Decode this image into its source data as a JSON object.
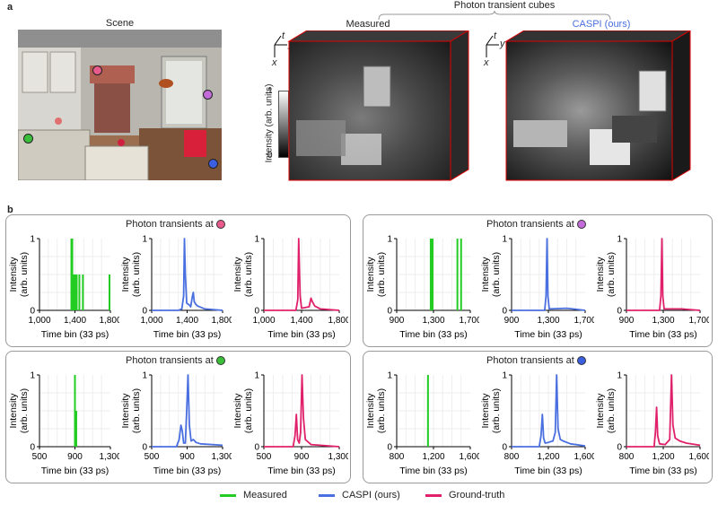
{
  "panel_a": {
    "letter": "a",
    "scene_title": "Scene",
    "cubes_header": "Photon transient cubes",
    "measured_title": "Measured",
    "caspi_title": "CASPI (ours)",
    "colorbar": {
      "label": "Intensity (arb. units)",
      "max": "1",
      "min": "0"
    },
    "axes_labels": {
      "t": "t",
      "y": "y",
      "x": "x"
    },
    "points": [
      {
        "name": "pink",
        "color": "#e85a8c"
      },
      {
        "name": "purple",
        "color": "#c36bd9"
      },
      {
        "name": "green",
        "color": "#3bbf3b"
      },
      {
        "name": "blue",
        "color": "#3b5fe0"
      }
    ]
  },
  "panel_b": {
    "letter": "b",
    "group_title_prefix": "Photon transients at",
    "ylabel_line1": "Intensity",
    "ylabel_line2": "(arb. units)",
    "xlabel": "Time bin (33 ps)"
  },
  "legend": {
    "measured": "Measured",
    "caspi": "CASPI (ours)",
    "ground_truth": "Ground-truth"
  },
  "colors": {
    "measured": "#22cc22",
    "caspi": "#4a6fe0",
    "ground_truth": "#e0206a",
    "caspi_title": "#4a6fe0"
  },
  "chart_data": [
    {
      "type": "line",
      "group": "pink",
      "series": [
        {
          "name": "Measured",
          "color": "#22cc22",
          "spikes": [
            [
              1360,
              1
            ],
            [
              1370,
              1
            ],
            [
              1375,
              0.5
            ],
            [
              1385,
              0.5
            ],
            [
              1400,
              0.5
            ],
            [
              1420,
              0.5
            ],
            [
              1450,
              0.5
            ],
            [
              1490,
              0.5
            ],
            [
              1790,
              0.5
            ]
          ]
        }
      ],
      "x_ticks": [
        "1,000",
        "1,400",
        "1,800"
      ],
      "xlim": [
        1000,
        1800
      ],
      "ylim": [
        0,
        1
      ],
      "y_ticks": [
        "0",
        "1"
      ]
    },
    {
      "type": "line",
      "group": "pink",
      "series": [
        {
          "name": "CASPI (ours)",
          "color": "#4a6fe0",
          "points": [
            [
              1000,
              0
            ],
            [
              1300,
              0
            ],
            [
              1340,
              0.02
            ],
            [
              1360,
              0.2
            ],
            [
              1370,
              1
            ],
            [
              1380,
              0.5
            ],
            [
              1395,
              0.1
            ],
            [
              1420,
              0.08
            ],
            [
              1440,
              0.05
            ],
            [
              1460,
              0.2
            ],
            [
              1470,
              0.25
            ],
            [
              1480,
              0.12
            ],
            [
              1500,
              0.08
            ],
            [
              1520,
              0.06
            ],
            [
              1560,
              0.04
            ],
            [
              1600,
              0.02
            ],
            [
              1800,
              0
            ]
          ]
        }
      ],
      "x_ticks": [
        "1,000",
        "1,400",
        "1,800"
      ],
      "xlim": [
        1000,
        1800
      ],
      "ylim": [
        0,
        1
      ],
      "y_ticks": [
        "0",
        "1"
      ]
    },
    {
      "type": "line",
      "group": "pink",
      "series": [
        {
          "name": "Ground-truth",
          "color": "#e0206a",
          "points": [
            [
              1000,
              0
            ],
            [
              1340,
              0
            ],
            [
              1360,
              0.15
            ],
            [
              1370,
              1
            ],
            [
              1385,
              0.2
            ],
            [
              1400,
              0.03
            ],
            [
              1480,
              0.05
            ],
            [
              1500,
              0.17
            ],
            [
              1515,
              0.12
            ],
            [
              1540,
              0.06
            ],
            [
              1600,
              0.02
            ],
            [
              1800,
              0
            ]
          ]
        }
      ],
      "x_ticks": [
        "1,000",
        "1,400",
        "1,800"
      ],
      "xlim": [
        1000,
        1800
      ],
      "ylim": [
        0,
        1
      ],
      "y_ticks": [
        "0",
        "1"
      ]
    },
    {
      "type": "line",
      "group": "purple",
      "series": [
        {
          "name": "Measured",
          "color": "#22cc22",
          "spikes": [
            [
              1270,
              1
            ],
            [
              1280,
              1
            ],
            [
              1290,
              1
            ],
            [
              1560,
              1
            ],
            [
              1600,
              1
            ]
          ]
        }
      ],
      "x_ticks": [
        "900",
        "1,300",
        "1,700"
      ],
      "xlim": [
        900,
        1700
      ],
      "ylim": [
        0,
        1
      ],
      "y_ticks": [
        "0",
        "1"
      ]
    },
    {
      "type": "line",
      "group": "purple",
      "series": [
        {
          "name": "CASPI (ours)",
          "color": "#4a6fe0",
          "points": [
            [
              900,
              0
            ],
            [
              1260,
              0
            ],
            [
              1275,
              0.2
            ],
            [
              1285,
              1
            ],
            [
              1295,
              0.2
            ],
            [
              1310,
              0.02
            ],
            [
              1500,
              0.03
            ],
            [
              1700,
              0
            ]
          ]
        }
      ],
      "x_ticks": [
        "900",
        "1,300",
        "1,700"
      ],
      "xlim": [
        900,
        1700
      ],
      "ylim": [
        0,
        1
      ],
      "y_ticks": [
        "0",
        "1"
      ]
    },
    {
      "type": "line",
      "group": "purple",
      "series": [
        {
          "name": "Ground-truth",
          "color": "#e0206a",
          "points": [
            [
              900,
              0
            ],
            [
              1260,
              0
            ],
            [
              1275,
              0.2
            ],
            [
              1285,
              1
            ],
            [
              1295,
              0.2
            ],
            [
              1310,
              0.02
            ],
            [
              1500,
              0.02
            ],
            [
              1700,
              0
            ]
          ]
        }
      ],
      "x_ticks": [
        "900",
        "1,300",
        "1,700"
      ],
      "xlim": [
        900,
        1700
      ],
      "ylim": [
        0,
        1
      ],
      "y_ticks": [
        "0",
        "1"
      ]
    },
    {
      "type": "line",
      "group": "green",
      "series": [
        {
          "name": "Measured",
          "color": "#22cc22",
          "spikes": [
            [
              900,
              1
            ],
            [
              915,
              0.5
            ]
          ]
        }
      ],
      "x_ticks": [
        "500",
        "900",
        "1,300"
      ],
      "xlim": [
        500,
        1300
      ],
      "ylim": [
        0,
        1
      ],
      "y_ticks": [
        "0",
        "1"
      ]
    },
    {
      "type": "line",
      "group": "green",
      "series": [
        {
          "name": "CASPI (ours)",
          "color": "#4a6fe0",
          "points": [
            [
              500,
              0
            ],
            [
              780,
              0
            ],
            [
              810,
              0.1
            ],
            [
              830,
              0.3
            ],
            [
              845,
              0.22
            ],
            [
              860,
              0.05
            ],
            [
              880,
              0.05
            ],
            [
              895,
              0.5
            ],
            [
              910,
              1
            ],
            [
              925,
              0.3
            ],
            [
              945,
              0.08
            ],
            [
              970,
              0.1
            ],
            [
              1000,
              0.06
            ],
            [
              1050,
              0.04
            ],
            [
              1300,
              0.02
            ]
          ]
        }
      ],
      "x_ticks": [
        "500",
        "900",
        "1,300"
      ],
      "xlim": [
        500,
        1300
      ],
      "ylim": [
        0,
        1
      ],
      "y_ticks": [
        "0",
        "1"
      ]
    },
    {
      "type": "line",
      "group": "green",
      "series": [
        {
          "name": "Ground-truth",
          "color": "#e0206a",
          "points": [
            [
              500,
              0
            ],
            [
              810,
              0
            ],
            [
              830,
              0.15
            ],
            [
              845,
              0.45
            ],
            [
              858,
              0.1
            ],
            [
              875,
              0.05
            ],
            [
              890,
              0.2
            ],
            [
              905,
              1
            ],
            [
              920,
              0.4
            ],
            [
              940,
              0.1
            ],
            [
              1000,
              0.03
            ],
            [
              1300,
              0
            ]
          ]
        }
      ],
      "x_ticks": [
        "500",
        "900",
        "1,300"
      ],
      "xlim": [
        500,
        1300
      ],
      "ylim": [
        0,
        1
      ],
      "y_ticks": [
        "0",
        "1"
      ]
    },
    {
      "type": "line",
      "group": "blue",
      "series": [
        {
          "name": "Measured",
          "color": "#22cc22",
          "spikes": [
            [
              1140,
              1
            ]
          ]
        }
      ],
      "x_ticks": [
        "800",
        "1,200",
        "1,600"
      ],
      "xlim": [
        800,
        1600
      ],
      "ylim": [
        0,
        1
      ],
      "y_ticks": [
        "0",
        "1"
      ]
    },
    {
      "type": "line",
      "group": "blue",
      "series": [
        {
          "name": "CASPI (ours)",
          "color": "#4a6fe0",
          "points": [
            [
              800,
              0
            ],
            [
              1100,
              0
            ],
            [
              1120,
              0.15
            ],
            [
              1135,
              0.45
            ],
            [
              1148,
              0.12
            ],
            [
              1165,
              0.05
            ],
            [
              1200,
              0.06
            ],
            [
              1250,
              0.08
            ],
            [
              1275,
              0.2
            ],
            [
              1290,
              1
            ],
            [
              1305,
              0.25
            ],
            [
              1330,
              0.1
            ],
            [
              1360,
              0.08
            ],
            [
              1400,
              0.06
            ],
            [
              1440,
              0.04
            ],
            [
              1500,
              0.03
            ],
            [
              1600,
              0.01
            ]
          ]
        }
      ],
      "x_ticks": [
        "800",
        "1,200",
        "1,600"
      ],
      "xlim": [
        800,
        1600
      ],
      "ylim": [
        0,
        1
      ],
      "y_ticks": [
        "0",
        "1"
      ]
    },
    {
      "type": "line",
      "group": "blue",
      "series": [
        {
          "name": "Ground-truth",
          "color": "#e0206a",
          "points": [
            [
              800,
              0
            ],
            [
              1100,
              0
            ],
            [
              1115,
              0.2
            ],
            [
              1128,
              0.55
            ],
            [
              1140,
              0.15
            ],
            [
              1160,
              0.04
            ],
            [
              1220,
              0.03
            ],
            [
              1270,
              0.1
            ],
            [
              1290,
              1
            ],
            [
              1305,
              0.3
            ],
            [
              1330,
              0.12
            ],
            [
              1380,
              0.08
            ],
            [
              1450,
              0.05
            ],
            [
              1600,
              0.02
            ]
          ]
        }
      ],
      "x_ticks": [
        "800",
        "1,200",
        "1,600"
      ],
      "xlim": [
        800,
        1600
      ],
      "ylim": [
        0,
        1
      ],
      "y_ticks": [
        "0",
        "1"
      ]
    }
  ]
}
